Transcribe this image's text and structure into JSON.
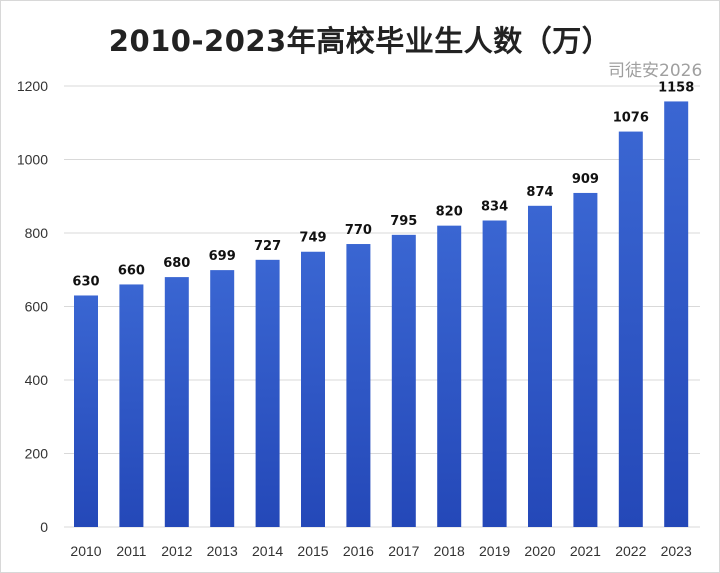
{
  "chart_data": {
    "type": "bar",
    "title": "2010-2023年高校毕业生人数（万）",
    "categories": [
      "2010",
      "2011",
      "2012",
      "2013",
      "2014",
      "2015",
      "2016",
      "2017",
      "2018",
      "2019",
      "2020",
      "2021",
      "2022",
      "2023"
    ],
    "values": [
      630,
      660,
      680,
      699,
      727,
      749,
      770,
      795,
      820,
      834,
      874,
      909,
      1076,
      1158
    ],
    "yticks": [
      "0",
      "200",
      "400",
      "600",
      "800",
      "1000",
      "1200"
    ],
    "ylim": [
      0,
      1200
    ],
    "grid": true,
    "bar_color": "#2f5cc8",
    "data_labels": true
  },
  "watermark": "司徒安2026"
}
